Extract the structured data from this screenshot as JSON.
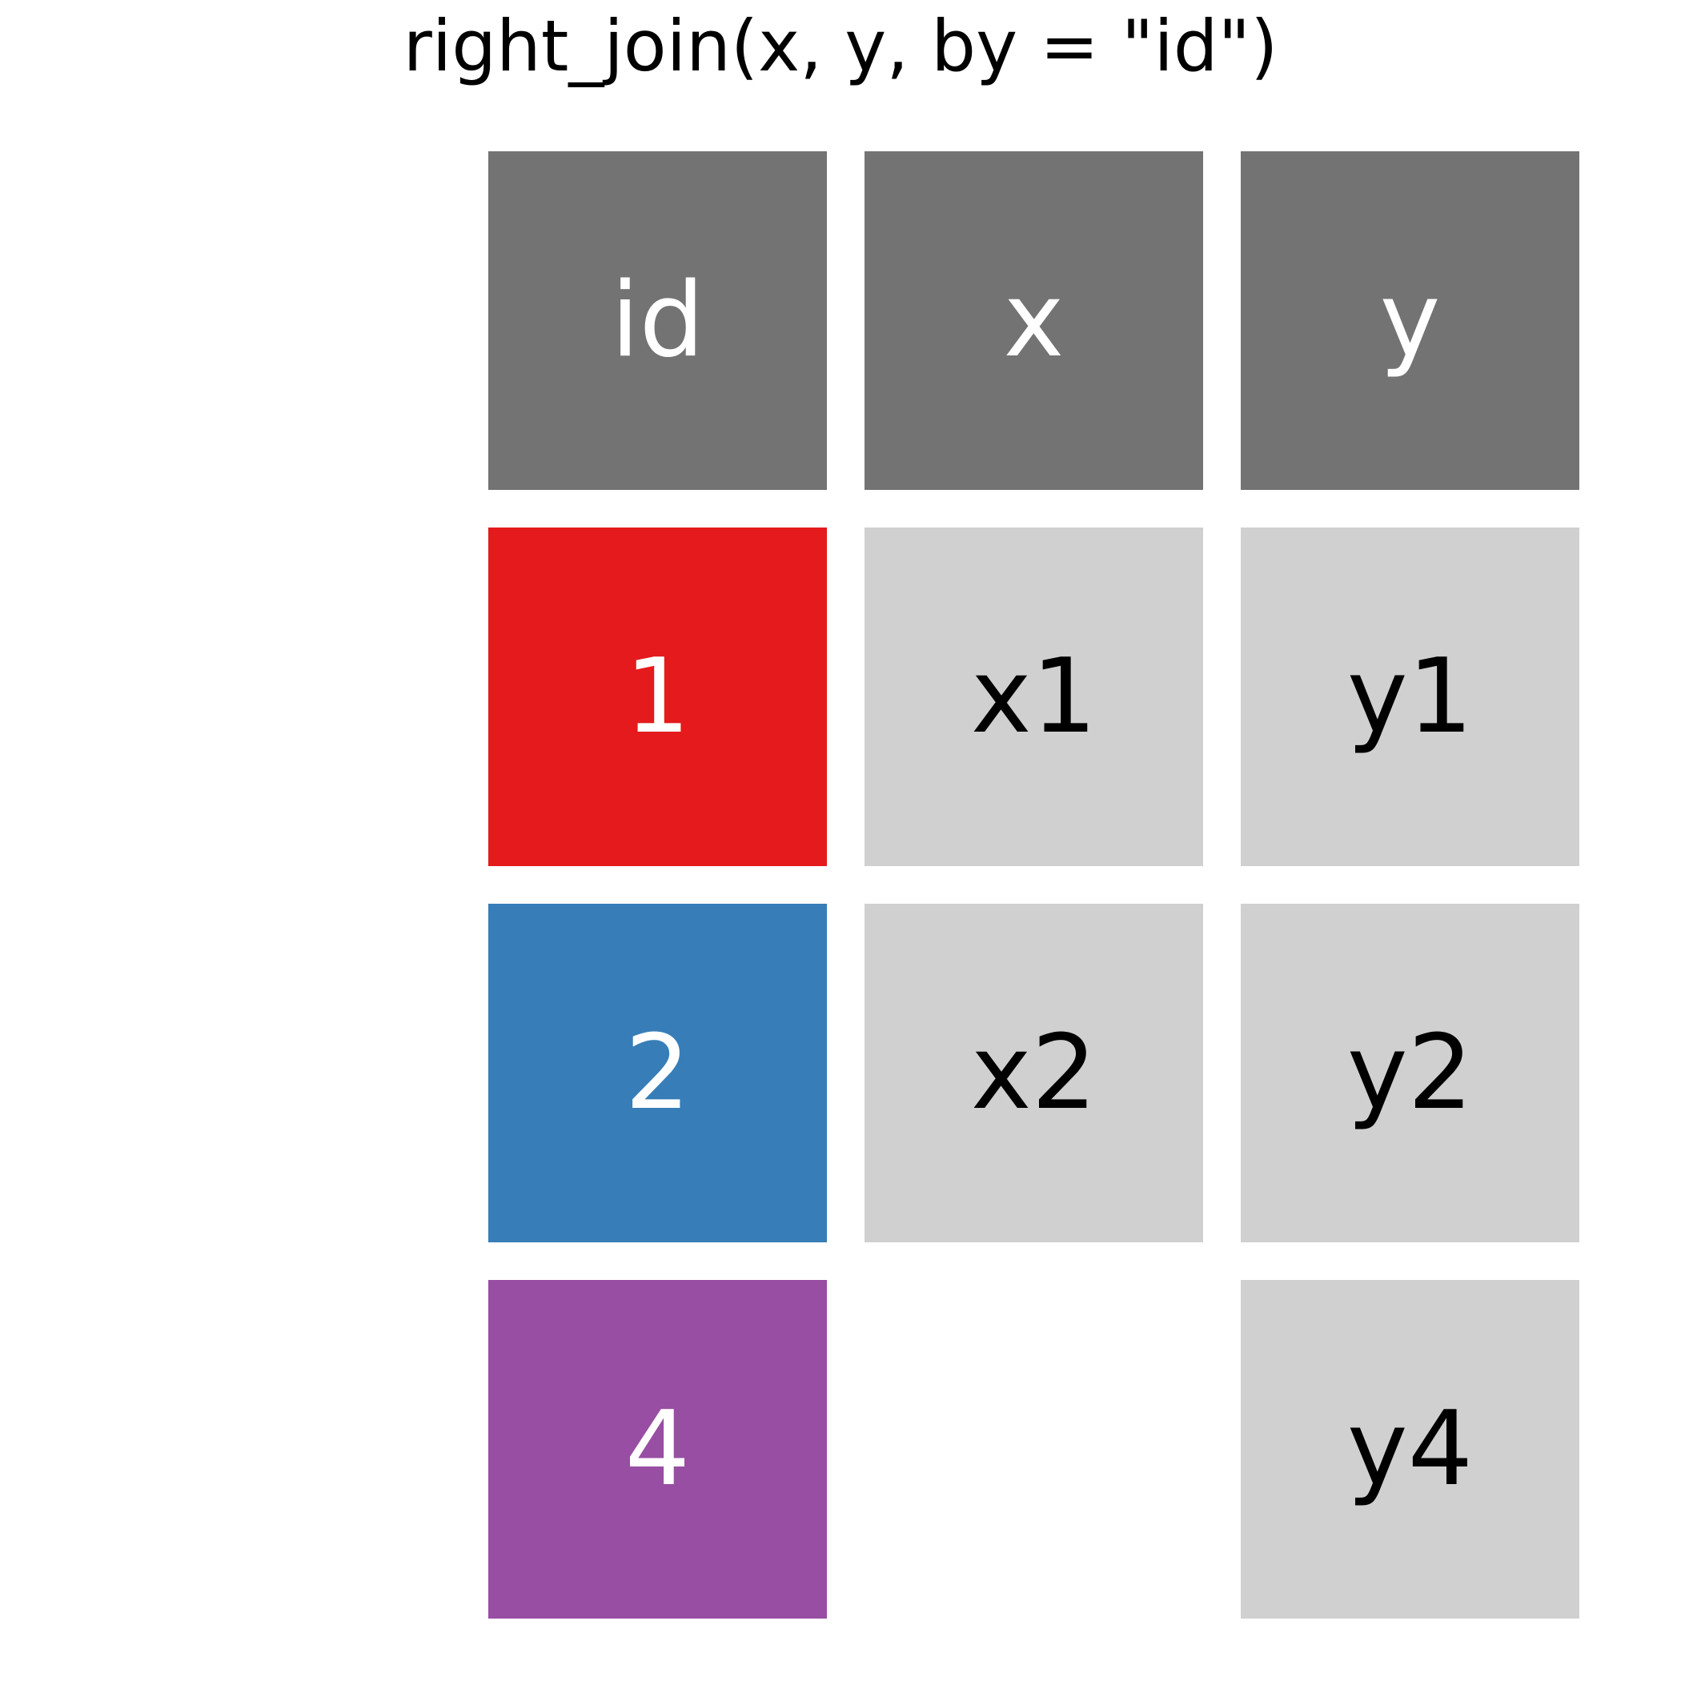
{
  "title": "right_join(x, y, by = \"id\")",
  "header": {
    "background": "#737373",
    "text_color": "#ffffff",
    "cells": [
      "id",
      "x",
      "y"
    ]
  },
  "rows": [
    {
      "id": "1",
      "id_color": "#e41a1c",
      "x": "x1",
      "x_present": true,
      "y": "y1"
    },
    {
      "id": "2",
      "id_color": "#377eb8",
      "x": "x2",
      "x_present": true,
      "y": "y2"
    },
    {
      "id": "4",
      "id_color": "#984ea3",
      "x": "",
      "x_present": false,
      "y": "y4"
    }
  ],
  "value_cell": {
    "background": "#d0d0d0",
    "text_color": "#000000"
  },
  "id_text_color": "#ffffff"
}
